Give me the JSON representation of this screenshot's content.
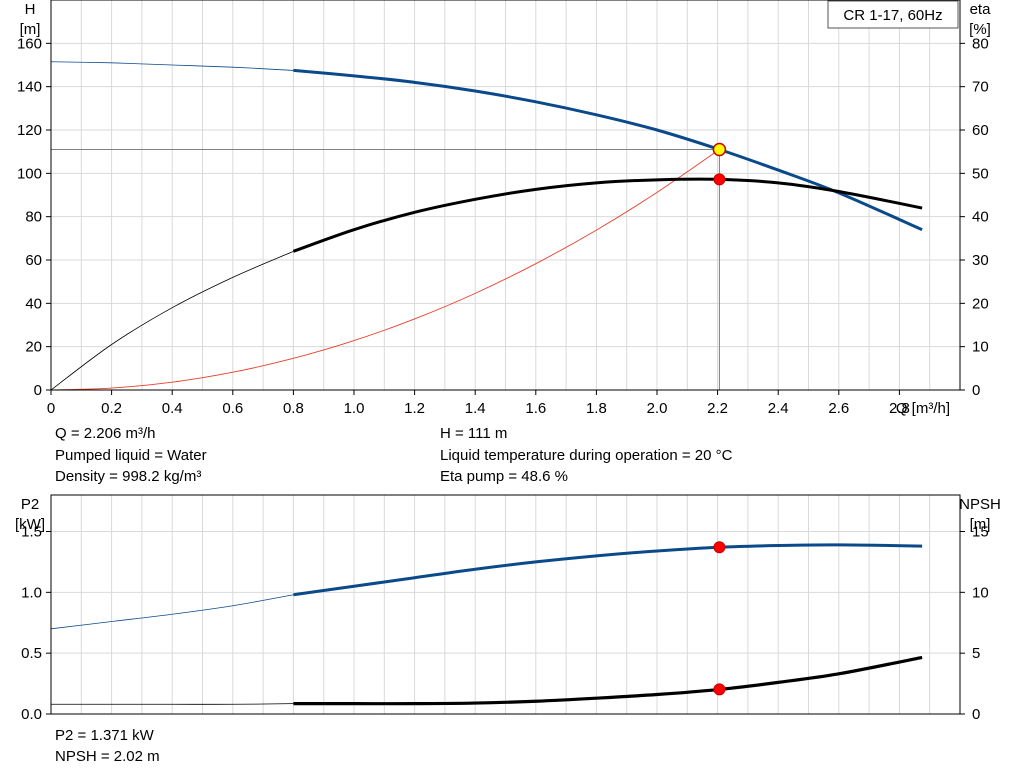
{
  "chart_data": [
    {
      "type": "line",
      "title": "CR 1-17, 60Hz",
      "xlabel": "Q [m³/h]",
      "ylabel_left": [
        "H",
        "[m]"
      ],
      "ylabel_right": [
        "eta",
        "[%]"
      ],
      "xlim": [
        0,
        3.0
      ],
      "ylim_left": [
        0,
        180
      ],
      "ylim_right": [
        0,
        90
      ],
      "x_ticks": [
        "0",
        "0.2",
        "0.4",
        "0.6",
        "0.8",
        "1.0",
        "1.2",
        "1.4",
        "1.6",
        "1.8",
        "2.0",
        "2.2",
        "2.4",
        "2.6",
        "2.8"
      ],
      "y_ticks_left": [
        "0",
        "20",
        "40",
        "60",
        "80",
        "100",
        "120",
        "140",
        "160"
      ],
      "y_ticks_right": [
        "0",
        "10",
        "20",
        "30",
        "40",
        "50",
        "60",
        "70",
        "80"
      ],
      "grid": true,
      "series": [
        {
          "axis": "left",
          "color": "#0b4a8a",
          "x": [
            0,
            0.2,
            0.4,
            0.6,
            0.8,
            1.0,
            1.2,
            1.4,
            1.6,
            1.8,
            2.0,
            2.206,
            2.4,
            2.6,
            2.875
          ],
          "values": [
            151.5,
            151.0,
            150.0,
            149.0,
            147.5,
            145.0,
            142.0,
            138.0,
            133.0,
            127.0,
            120.0,
            111.0,
            101.5,
            91.0,
            74.0
          ],
          "operating_from": 0.8
        },
        {
          "axis": "right",
          "color": "#000000",
          "x": [
            0,
            0.2,
            0.4,
            0.6,
            0.8,
            1.0,
            1.2,
            1.4,
            1.6,
            1.8,
            2.0,
            2.206,
            2.4,
            2.6,
            2.875
          ],
          "values": [
            0,
            10.5,
            19.0,
            26.0,
            32.0,
            37.0,
            41.0,
            44.0,
            46.3,
            47.8,
            48.5,
            48.6,
            47.8,
            45.8,
            42.0
          ],
          "operating_from": 0.8
        }
      ],
      "system_curve": {
        "color": "#e8402a",
        "axis": "left",
        "x": [
          0,
          0.2,
          0.4,
          0.6,
          0.8,
          1.0,
          1.2,
          1.4,
          1.6,
          1.8,
          2.0,
          2.206
        ],
        "values": [
          0,
          0.9,
          3.6,
          8.2,
          14.6,
          22.8,
          32.8,
          44.6,
          58.3,
          73.8,
          91.2,
          111.0
        ]
      },
      "duty_point": {
        "x": 2.206,
        "y": 111,
        "eta": 48.6
      }
    },
    {
      "type": "line",
      "xlabel": "",
      "ylabel_left": [
        "P2",
        "[kW]"
      ],
      "ylabel_right": [
        "NPSH",
        "[m]"
      ],
      "xlim": [
        0,
        3.0
      ],
      "ylim_left": [
        0,
        1.8
      ],
      "ylim_right": [
        0,
        18
      ],
      "y_ticks_left": [
        "0.0",
        "0.5",
        "1.0",
        "1.5"
      ],
      "y_ticks_right": [
        "0",
        "5",
        "10",
        "15"
      ],
      "grid": true,
      "series": [
        {
          "axis": "left",
          "color": "#0b4a8a",
          "x": [
            0,
            0.2,
            0.4,
            0.6,
            0.8,
            1.0,
            1.2,
            1.4,
            1.6,
            1.8,
            2.0,
            2.206,
            2.4,
            2.6,
            2.875
          ],
          "values": [
            0.7,
            0.76,
            0.82,
            0.89,
            0.98,
            1.05,
            1.12,
            1.19,
            1.25,
            1.3,
            1.34,
            1.371,
            1.385,
            1.39,
            1.38
          ],
          "operating_from": 0.8
        },
        {
          "axis": "right",
          "color": "#000000",
          "x": [
            0,
            0.2,
            0.4,
            0.6,
            0.8,
            1.0,
            1.2,
            1.4,
            1.6,
            1.8,
            2.0,
            2.206,
            2.4,
            2.6,
            2.875
          ],
          "values": [
            0.8,
            0.8,
            0.8,
            0.8,
            0.85,
            0.85,
            0.85,
            0.9,
            1.05,
            1.3,
            1.6,
            2.02,
            2.6,
            3.3,
            4.65
          ],
          "operating_from": 0.8
        }
      ],
      "duty_point": {
        "x": 2.206,
        "p2": 1.371,
        "npsh": 2.02
      }
    }
  ],
  "info_top": {
    "q": "Q = 2.206 m³/h",
    "liquid": "Pumped liquid = Water",
    "density": "Density = 998.2 kg/m³",
    "h": "H = 111 m",
    "temp": "Liquid temperature during operation = 20 °C",
    "eta": "Eta pump = 48.6 %"
  },
  "info_bottom": {
    "p2": "P2 = 1.371 kW",
    "npsh": "NPSH = 2.02 m"
  }
}
